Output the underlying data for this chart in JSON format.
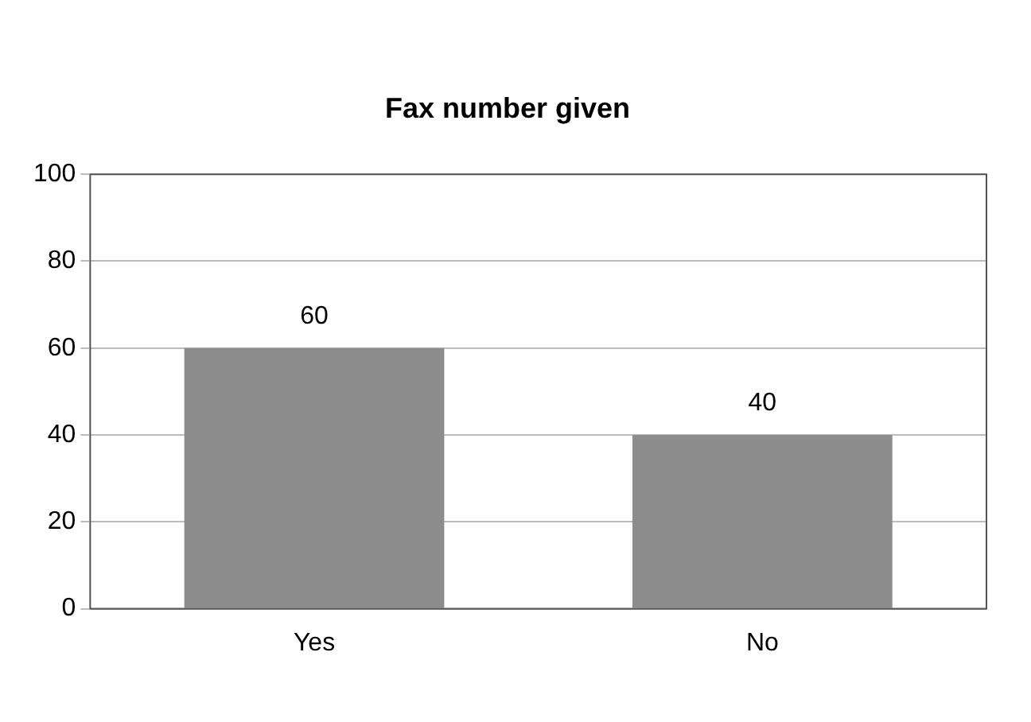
{
  "chart_data": {
    "type": "bar",
    "title": "Fax number given",
    "categories": [
      "Yes",
      "No"
    ],
    "values": [
      60,
      40
    ],
    "color": "#8c8c8c",
    "ylim": [
      0,
      100
    ],
    "yticks": [
      0,
      20,
      40,
      60,
      80,
      100
    ],
    "grid": "y",
    "data_labels": true
  }
}
